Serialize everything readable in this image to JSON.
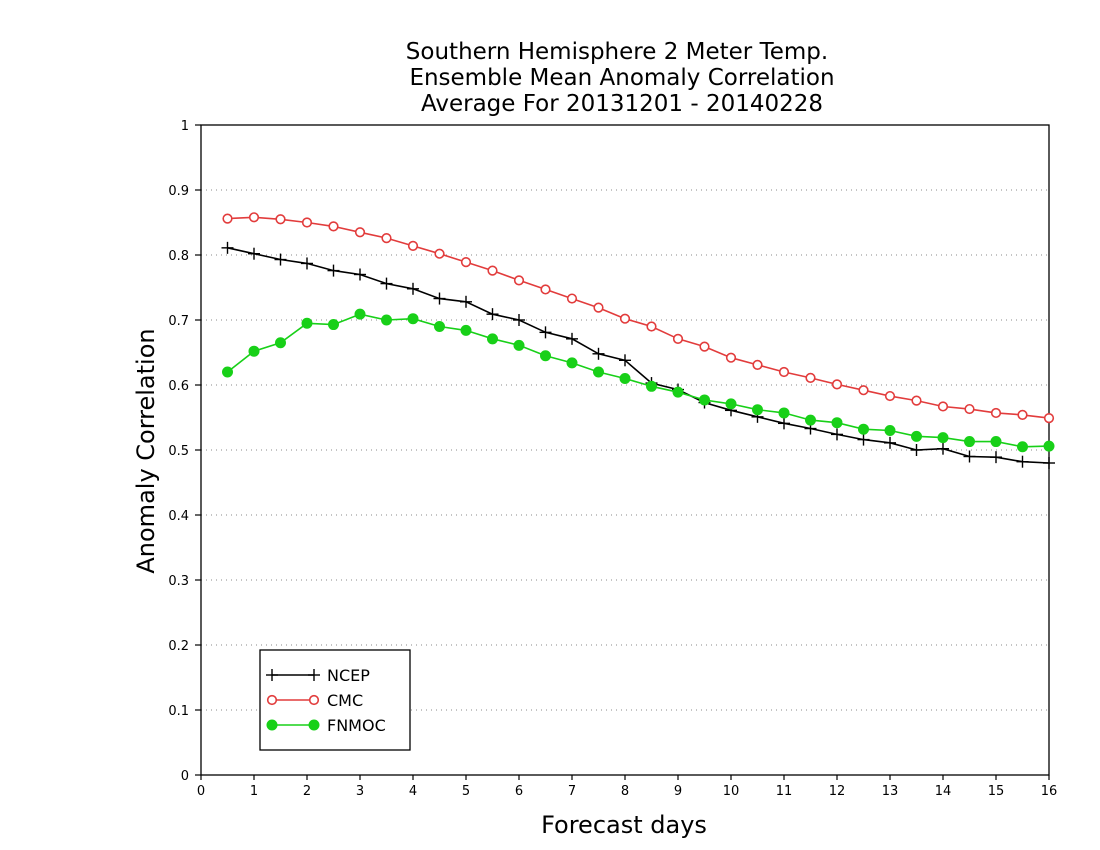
{
  "chart_data": {
    "type": "line",
    "title_lines": [
      "Southern Hemisphere 2 Meter Temp.",
      "Ensemble Mean Anomaly Correlation",
      "Average For 20131201 - 20140228"
    ],
    "xlabel": "Forecast days",
    "ylabel": "Anomaly Correlation",
    "xlim": [
      0,
      16
    ],
    "ylim": [
      0,
      1
    ],
    "xticks": [
      "0",
      "1",
      "2",
      "3",
      "4",
      "5",
      "6",
      "7",
      "8",
      "9",
      "10",
      "11",
      "12",
      "13",
      "14",
      "15",
      "16"
    ],
    "yticks": [
      "0",
      "0.1",
      "0.2",
      "0.3",
      "0.4",
      "0.5",
      "0.6",
      "0.7",
      "0.8",
      "0.9",
      "1"
    ],
    "grid": "horizontal dotted",
    "legend_position": "bottom-left",
    "x": [
      0.5,
      1,
      1.5,
      2,
      2.5,
      3,
      3.5,
      4,
      4.5,
      5,
      5.5,
      6,
      6.5,
      7,
      7.5,
      8,
      8.5,
      9,
      9.5,
      10,
      10.5,
      11,
      11.5,
      12,
      12.5,
      13,
      13.5,
      14,
      14.5,
      15,
      15.5,
      16
    ],
    "series": [
      {
        "name": "NCEP",
        "color": "#000000",
        "marker": "plus",
        "values": [
          0.811,
          0.802,
          0.793,
          0.787,
          0.776,
          0.77,
          0.756,
          0.748,
          0.733,
          0.728,
          0.709,
          0.7,
          0.681,
          0.671,
          0.648,
          0.638,
          0.603,
          0.593,
          0.573,
          0.561,
          0.551,
          0.541,
          0.533,
          0.524,
          0.516,
          0.511,
          0.5,
          0.502,
          0.49,
          0.489,
          0.482,
          0.48
        ]
      },
      {
        "name": "CMC",
        "color": "#e23c3c",
        "marker": "open-circle",
        "values": [
          0.856,
          0.858,
          0.855,
          0.85,
          0.844,
          0.835,
          0.826,
          0.814,
          0.802,
          0.789,
          0.776,
          0.761,
          0.747,
          0.733,
          0.719,
          0.702,
          0.69,
          0.671,
          0.659,
          0.642,
          0.631,
          0.62,
          0.611,
          0.601,
          0.592,
          0.583,
          0.576,
          0.567,
          0.563,
          0.557,
          0.554,
          0.549
        ]
      },
      {
        "name": "FNMOC",
        "color": "#18d018",
        "marker": "filled-circle",
        "values": [
          0.62,
          0.652,
          0.665,
          0.695,
          0.693,
          0.709,
          0.7,
          0.702,
          0.69,
          0.684,
          0.671,
          0.661,
          0.645,
          0.634,
          0.62,
          0.61,
          0.598,
          0.589,
          0.577,
          0.571,
          0.562,
          0.557,
          0.546,
          0.542,
          0.532,
          0.53,
          0.521,
          0.519,
          0.513,
          0.513,
          0.505,
          0.506
        ]
      }
    ]
  }
}
